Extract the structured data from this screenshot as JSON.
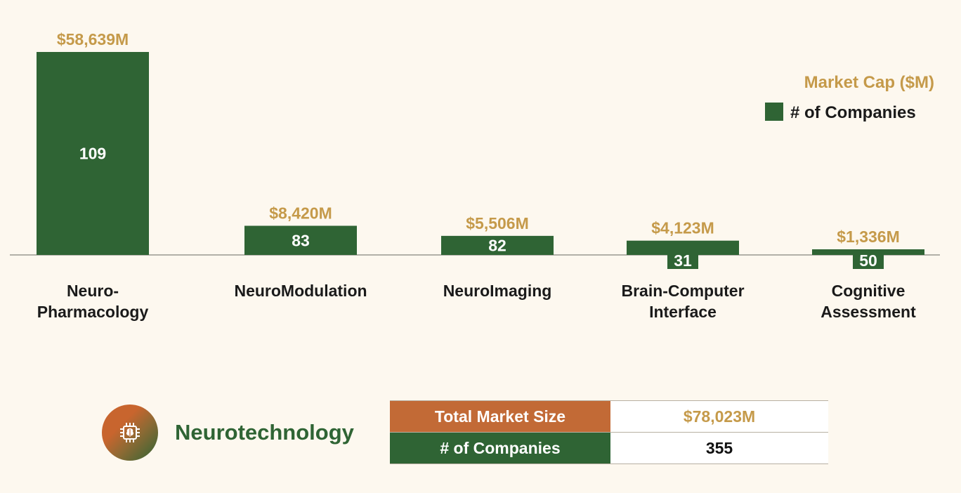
{
  "chart_data": {
    "type": "bar",
    "title": "",
    "categories": [
      [
        "Neuro-",
        "Pharmacology"
      ],
      [
        "NeuroModulation"
      ],
      [
        "NeuroImaging"
      ],
      [
        "Brain-Computer",
        "Interface"
      ],
      [
        "Cognitive",
        "Assessment"
      ]
    ],
    "market_cap": [
      58639,
      8420,
      5506,
      4123,
      1336
    ],
    "market_cap_labels": [
      "$58,639M",
      "$8,420M",
      "$5,506M",
      "$4,123M",
      "$1,336M"
    ],
    "companies": [
      109,
      83,
      82,
      31,
      50
    ],
    "legend": {
      "market_cap": "Market Cap ($M)",
      "companies": "# of Companies"
    },
    "colors": {
      "bar": "#2f6434",
      "cap_label": "#c59a4a",
      "text": "#1a1a1a",
      "baseline": "#9a9890"
    }
  },
  "brand": {
    "name": "Neurotechnology",
    "icon": "brain-chip-icon"
  },
  "summary": {
    "total_market_size_label": "Total Market Size",
    "total_market_size_value": "$78,023M",
    "companies_label": "# of Companies",
    "companies_value": "355"
  }
}
